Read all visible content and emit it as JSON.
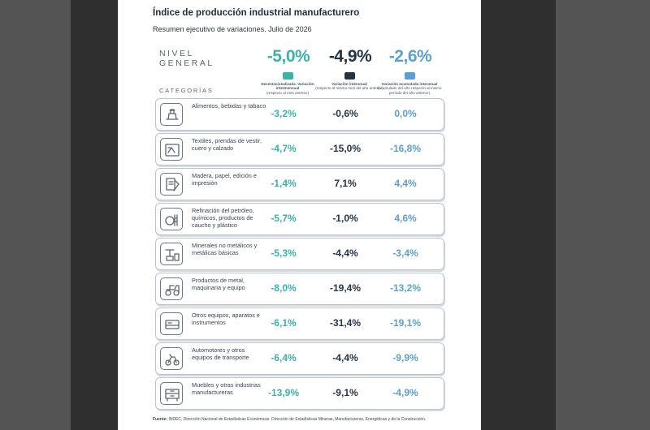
{
  "doc": {
    "title": "Índice de producción industrial manufacturero",
    "subtitle": "Resumen ejecutivo de variaciones. Julio de 2026",
    "nivel_line1": "NIVEL",
    "nivel_line2": "GENERAL",
    "totals": {
      "desest": "-5,0%",
      "interanual": "-4,9%",
      "acumulada": "-2,6%"
    },
    "badges": {
      "desest": "s.sa",
      "interanual": "s.ia",
      "acumulada": "s.ac"
    },
    "col_headers": {
      "desest": {
        "title": "Desestacionalizada. Variación intermensual",
        "note": "(respecto al mes anterior)"
      },
      "interanual": {
        "title": "Variación interanual",
        "note": "(respecto al mismo mes del año anterior)"
      },
      "acumulada": {
        "title": "Variación acumulada interanual",
        "note": "(acumulado del año respecto al mismo período del año anterior)"
      }
    },
    "categorias_label": "CATEGORÍAS",
    "rows": [
      {
        "icon": "food-icon",
        "label": "Alimentos, bebidas y tabaco",
        "desest": "-3,2%",
        "interanual": "-0,6%",
        "acumulada": "0,0%"
      },
      {
        "icon": "textile-icon",
        "label": "Textiles, prendas de vestir, cuero y calzado",
        "desest": "-4,7%",
        "interanual": "-15,0%",
        "acumulada": "-16,8%"
      },
      {
        "icon": "paper-icon",
        "label": "Madera, papel, edición e impresión",
        "desest": "-1,4%",
        "interanual": "7,1%",
        "acumulada": "4,4%"
      },
      {
        "icon": "refinery-icon",
        "label": "Refinación del petróleo, químicos, productos de caucho y plástico",
        "desest": "-5,7%",
        "interanual": "-1,0%",
        "acumulada": "4,6%"
      },
      {
        "icon": "minerals-icon",
        "label": "Minerales no metálicos y metálicas básicas",
        "desest": "-5,3%",
        "interanual": "-4,4%",
        "acumulada": "-3,4%"
      },
      {
        "icon": "tractor-icon",
        "label": "Productos de metal, maquinaria y equipo",
        "desest": "-8,0%",
        "interanual": "-19,4%",
        "acumulada": "-13,2%"
      },
      {
        "icon": "instrument-icon",
        "label": "Otros equipos, aparatos e instrumentos",
        "desest": "-6,1%",
        "interanual": "-31,4%",
        "acumulada": "-19,1%"
      },
      {
        "icon": "vehicles-icon",
        "label": "Automotores y otros equipos de transporte",
        "desest": "-6,4%",
        "interanual": "-4,4%",
        "acumulada": "-9,9%"
      },
      {
        "icon": "furniture-icon",
        "label": "Muebles y otras industrias manufactureras",
        "desest": "-13,9%",
        "interanual": "-9,1%",
        "acumulada": "-4,9%"
      }
    ],
    "footer_label": "Fuente:",
    "footer_text": "INDEC, Dirección Nacional de Estadísticas Económicas. Dirección de Estadísticas Mineras, Manufactureras, Energéticas y de la Construcción."
  },
  "colors": {
    "desest": "#3bb3aa",
    "interanual": "#243447",
    "acumulada": "#5a9fd6"
  }
}
